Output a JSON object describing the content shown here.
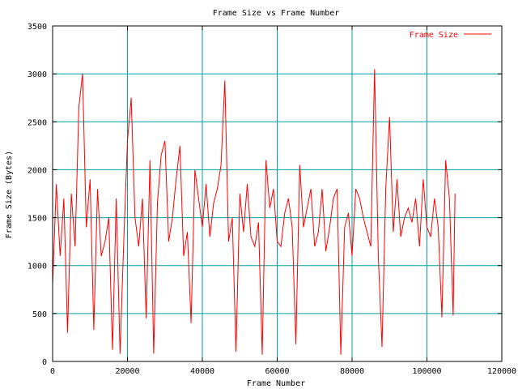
{
  "chart_data": {
    "type": "line",
    "title": "Frame Size vs Frame Number",
    "xlabel": "Frame Number",
    "ylabel": "Frame Size (Bytes)",
    "xlim": [
      0,
      120000
    ],
    "ylim": [
      0,
      3500
    ],
    "x_ticks": [
      0,
      20000,
      40000,
      60000,
      80000,
      100000,
      120000
    ],
    "y_ticks": [
      0,
      500,
      1000,
      1500,
      2000,
      2500,
      3000,
      3500
    ],
    "x_tick_labels": [
      "0",
      "20000",
      "40000",
      "60000",
      "80000",
      "100000",
      "120000"
    ],
    "y_tick_labels": [
      "0",
      "500",
      "1000",
      "1500",
      "2000",
      "2500",
      "3000",
      "3500"
    ],
    "grid": true,
    "grid_color": "#00a0a0",
    "legend_position": "top-right",
    "series": [
      {
        "name": "Frame Size",
        "color": "#ff0000",
        "x": [
          0,
          1000,
          2000,
          3000,
          4000,
          5000,
          6000,
          7000,
          8000,
          9000,
          10000,
          11000,
          12000,
          13000,
          14000,
          15000,
          16000,
          17000,
          18000,
          19000,
          20000,
          21000,
          22000,
          23000,
          24000,
          25000,
          26000,
          27000,
          28000,
          29000,
          30000,
          31000,
          32000,
          33000,
          34000,
          35000,
          36000,
          37000,
          38000,
          39000,
          40000,
          41000,
          42000,
          43000,
          44000,
          45000,
          46000,
          47000,
          48000,
          49000,
          50000,
          51000,
          52000,
          53000,
          54000,
          55000,
          56000,
          57000,
          58000,
          59000,
          60000,
          61000,
          62000,
          63000,
          64000,
          65000,
          66000,
          67000,
          68000,
          69000,
          70000,
          71000,
          72000,
          73000,
          74000,
          75000,
          76000,
          77000,
          78000,
          79000,
          80000,
          81000,
          82000,
          83000,
          84000,
          85000,
          86000,
          87000,
          88000,
          89000,
          90000,
          91000,
          92000,
          93000,
          94000,
          95000,
          96000,
          97000,
          98000,
          99000,
          100000,
          101000,
          102000,
          103000,
          104000,
          105000,
          106000,
          107000,
          107500
        ],
        "y": [
          800,
          1850,
          1100,
          1700,
          300,
          1750,
          1200,
          2650,
          3000,
          1400,
          1900,
          330,
          1800,
          1100,
          1250,
          1500,
          120,
          1700,
          80,
          1250,
          2300,
          2750,
          1500,
          1200,
          1700,
          450,
          2100,
          80,
          1650,
          2150,
          2300,
          1250,
          1500,
          1900,
          2250,
          1100,
          1350,
          400,
          2000,
          1700,
          1400,
          1850,
          1300,
          1650,
          1800,
          2050,
          2930,
          1250,
          1500,
          100,
          1750,
          1350,
          1850,
          1300,
          1200,
          1450,
          70,
          2100,
          1600,
          1800,
          1250,
          1200,
          1550,
          1700,
          1400,
          180,
          2050,
          1400,
          1600,
          1800,
          1200,
          1350,
          1800,
          1150,
          1400,
          1700,
          1800,
          70,
          1400,
          1550,
          1100,
          1800,
          1700,
          1500,
          1350,
          1200,
          3050,
          1100,
          150,
          1800,
          2550,
          1350,
          1900,
          1300,
          1500,
          1600,
          1450,
          1700,
          1200,
          1900,
          1400,
          1300,
          1700,
          1400,
          460,
          2100,
          1700,
          480,
          1750
        ]
      }
    ]
  }
}
